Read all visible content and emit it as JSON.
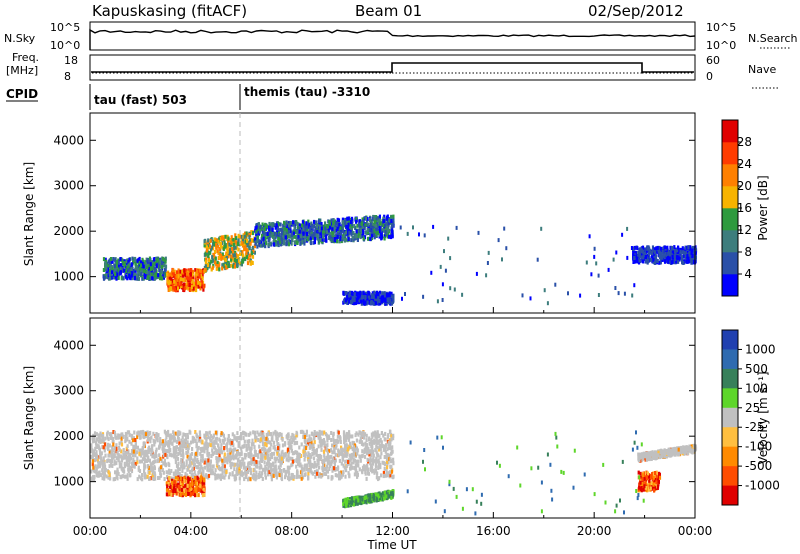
{
  "header": {
    "station": "Kapuskasing (fitACF)",
    "beam": "Beam 01",
    "date": "02/Sep/2012"
  },
  "left_labels": {
    "nsky": "N.Sky",
    "freq": "Freq.",
    "freq_unit": "[MHz]",
    "cpid": "CPID"
  },
  "right_labels": {
    "nsearch": "N.Search",
    "nave": "Nave"
  },
  "noise_axis": {
    "left_top": "10^5",
    "left_bottom": "10^0",
    "right_top": "10^5",
    "right_bottom": "10^0"
  },
  "freq_axis": {
    "left_top": "18",
    "left_bottom": "8",
    "right_top": "60",
    "right_bottom": "0"
  },
  "cpid": [
    {
      "label": "tau (fast) 503"
    },
    {
      "label": "themis (tau) -3310"
    }
  ],
  "colors": {
    "power_scale": [
      "#0000ff",
      "#2a50a8",
      "#3d7d7d",
      "#2e9a3e",
      "#f7b300",
      "#ff8000",
      "#ff3c00",
      "#e00000"
    ],
    "velocity_scale": [
      "#2040b0",
      "#2f6bb0",
      "#37805a",
      "#5ed62a",
      "#c0c0c0",
      "#ffbf40",
      "#ff8a00",
      "#ff4d00",
      "#e00000"
    ],
    "ground_scatter": "#c0c0c0"
  },
  "chart_data": [
    {
      "type": "heatmap",
      "panel": "power",
      "ylabel": "Slant Range [km]",
      "xlabel": "",
      "yticks": [
        1000,
        2000,
        3000,
        4000
      ],
      "ylim": [
        200,
        4600
      ],
      "xlim_hours": [
        0,
        24
      ],
      "colorbar": {
        "label": "Power [dB]",
        "ticks": [
          "4",
          "8",
          "12",
          "16",
          "20",
          "24",
          "28"
        ],
        "range": [
          0,
          32
        ]
      },
      "scatter_regions": [
        {
          "t_start": 0.5,
          "t_end": 3.0,
          "r_min": 950,
          "r_max": 1400,
          "level": "medium"
        },
        {
          "t_start": 3.0,
          "t_end": 4.5,
          "r_min": 700,
          "r_max": 1150,
          "level": "high"
        },
        {
          "t_start": 4.5,
          "t_end": 6.5,
          "r_min": 1100,
          "r_max": 1800,
          "level": "medium-high"
        },
        {
          "t_start": 6.5,
          "t_end": 12.0,
          "r_min": 1650,
          "r_max": 2150,
          "level": "medium"
        },
        {
          "t_start": 21.5,
          "t_end": 24.0,
          "r_min": 1300,
          "r_max": 1650,
          "level": "low"
        },
        {
          "t_start": 10.0,
          "t_end": 12.0,
          "r_min": 400,
          "r_max": 650,
          "level": "low"
        }
      ]
    },
    {
      "type": "heatmap",
      "panel": "velocity",
      "ylabel": "Slant Range [km]",
      "xlabel": "Time UT",
      "yticks": [
        1000,
        2000,
        3000,
        4000
      ],
      "ylim": [
        200,
        4600
      ],
      "xlim_hours": [
        0,
        24
      ],
      "xticks": [
        "00:00",
        "04:00",
        "08:00",
        "12:00",
        "16:00",
        "20:00",
        "00:00"
      ],
      "colorbar": {
        "label": "Velocity [m s⁻¹]",
        "ticks": [
          "1000",
          "500",
          "100",
          "25",
          "-25",
          "-100",
          "-500",
          "-1000"
        ]
      },
      "scatter_regions": [
        {
          "t_start": 0.0,
          "t_end": 12.0,
          "r_min": 1050,
          "r_max": 2100,
          "class": "ground"
        },
        {
          "t_start": 3.0,
          "t_end": 4.5,
          "r_min": 700,
          "r_max": 1100,
          "class": "negative"
        },
        {
          "t_start": 10.0,
          "t_end": 12.0,
          "r_min": 450,
          "r_max": 600,
          "class": "positive-low"
        },
        {
          "t_start": 21.7,
          "t_end": 24.0,
          "r_min": 1450,
          "r_max": 1600,
          "class": "ground"
        },
        {
          "t_start": 21.7,
          "t_end": 22.6,
          "r_min": 800,
          "r_max": 1200,
          "class": "negative"
        }
      ]
    }
  ]
}
